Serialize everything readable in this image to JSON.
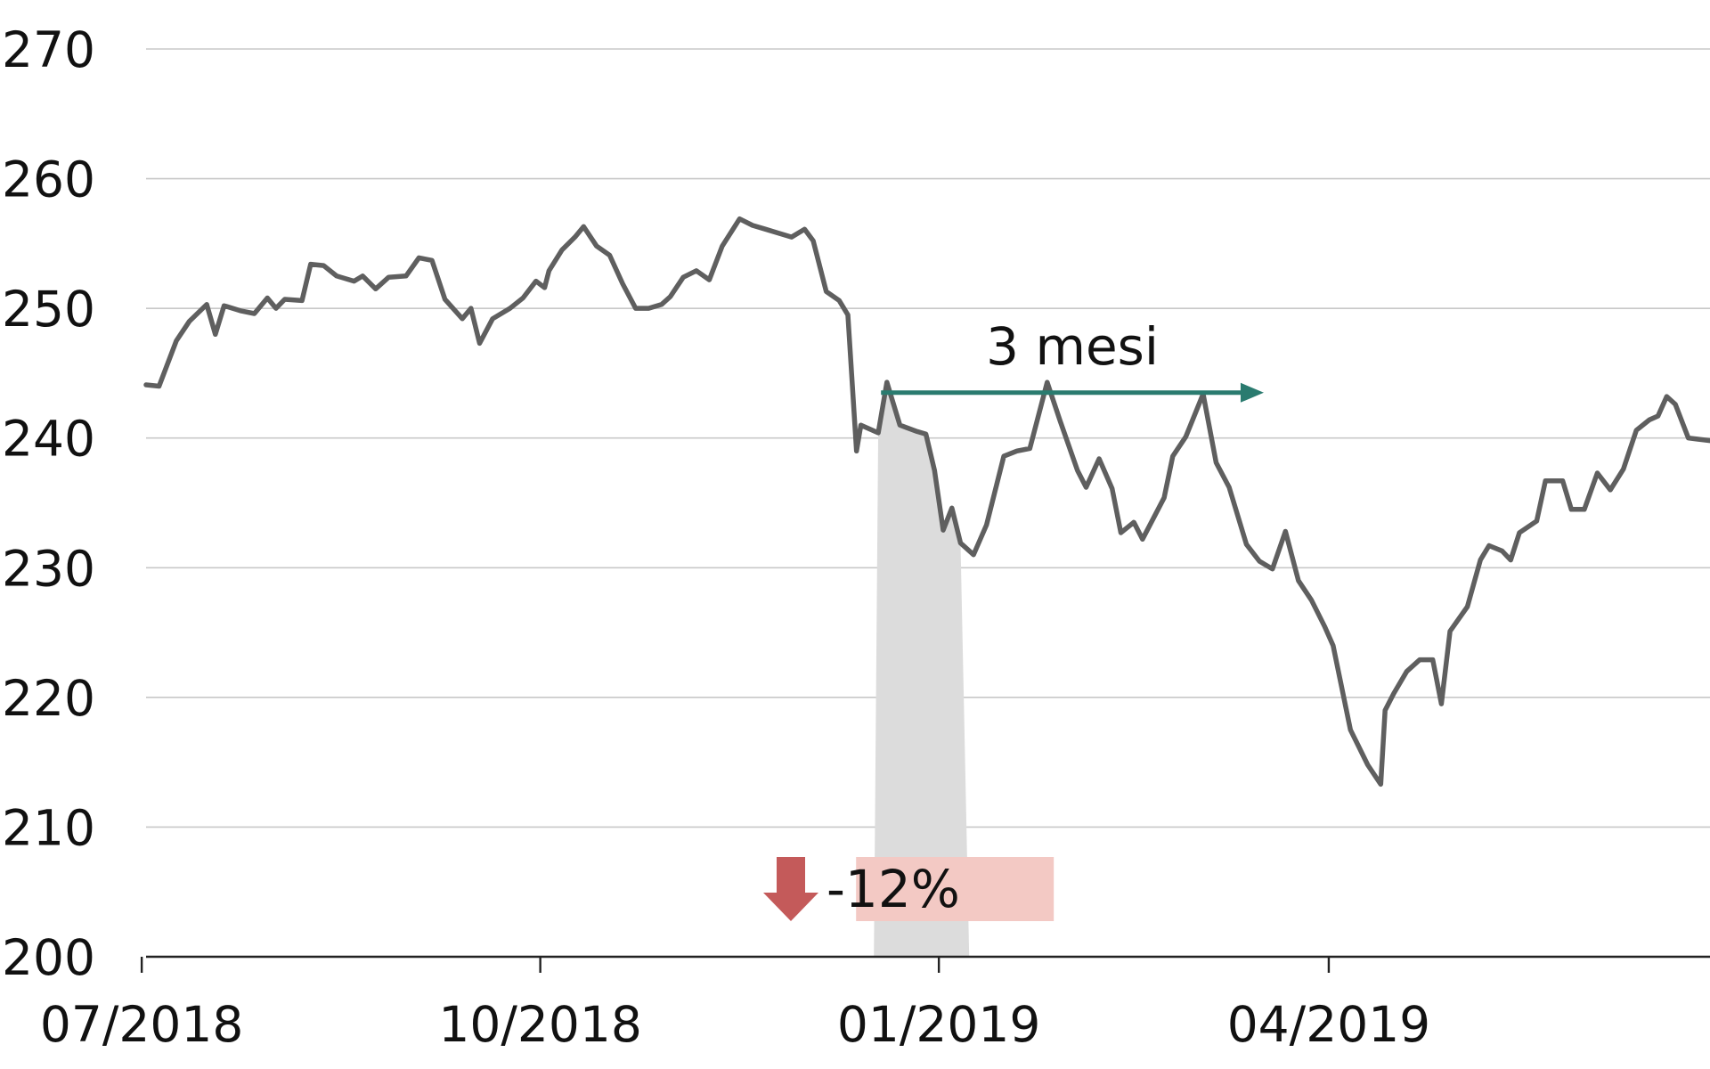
{
  "chart_data": {
    "type": "line",
    "title": "",
    "xlabel": "",
    "ylabel": "",
    "ylim": [
      200,
      270
    ],
    "yticks": [
      200,
      210,
      220,
      230,
      240,
      250,
      260,
      270
    ],
    "xlim": [
      "2018-07-02",
      "2019-06-28"
    ],
    "xticks": [
      {
        "date": "2018-07-01",
        "label": "07/2018"
      },
      {
        "date": "2018-10-01",
        "label": "10/2018"
      },
      {
        "date": "2019-01-01",
        "label": "01/2019"
      },
      {
        "date": "2019-04-01",
        "label": "04/2019"
      }
    ],
    "grid": "horizontal",
    "legend": "none",
    "colors": {
      "line": "#5f5f5f",
      "grid": "#c8c8c8",
      "axis": "#222222",
      "drawdown_shade": "#dcdcdc",
      "recovery_arrow": "#2a7b6f",
      "down_arrow": "#c45a5a",
      "down_box": "#f3c9c4"
    },
    "series": [
      {
        "points": [
          [
            "2018-07-02",
            244.1
          ],
          [
            "2018-07-05",
            244.0
          ],
          [
            "2018-07-09",
            247.5
          ],
          [
            "2018-07-12",
            249.0
          ],
          [
            "2018-07-16",
            250.3
          ],
          [
            "2018-07-18",
            248.0
          ],
          [
            "2018-07-20",
            250.2
          ],
          [
            "2018-07-24",
            249.8
          ],
          [
            "2018-07-27",
            249.6
          ],
          [
            "2018-07-30",
            250.8
          ],
          [
            "2018-08-01",
            250.0
          ],
          [
            "2018-08-03",
            250.7
          ],
          [
            "2018-08-07",
            250.6
          ],
          [
            "2018-08-09",
            253.4
          ],
          [
            "2018-08-12",
            253.3
          ],
          [
            "2018-08-15",
            252.5
          ],
          [
            "2018-08-19",
            252.1
          ],
          [
            "2018-08-21",
            252.5
          ],
          [
            "2018-08-24",
            251.5
          ],
          [
            "2018-08-27",
            252.4
          ],
          [
            "2018-08-31",
            252.5
          ],
          [
            "2018-09-03",
            253.9
          ],
          [
            "2018-09-06",
            253.7
          ],
          [
            "2018-09-09",
            250.7
          ],
          [
            "2018-09-13",
            249.2
          ],
          [
            "2018-09-15",
            250.0
          ],
          [
            "2018-09-17",
            247.3
          ],
          [
            "2018-09-20",
            249.2
          ],
          [
            "2018-09-24",
            250.0
          ],
          [
            "2018-09-27",
            250.8
          ],
          [
            "2018-09-30",
            252.1
          ],
          [
            "2018-10-02",
            251.6
          ],
          [
            "2018-10-03",
            252.9
          ],
          [
            "2018-10-06",
            254.5
          ],
          [
            "2018-10-09",
            255.5
          ],
          [
            "2018-10-11",
            256.3
          ],
          [
            "2018-10-14",
            254.8
          ],
          [
            "2018-10-17",
            254.1
          ],
          [
            "2018-10-20",
            251.9
          ],
          [
            "2018-10-23",
            250.0
          ],
          [
            "2018-10-26",
            250.0
          ],
          [
            "2018-10-29",
            250.3
          ],
          [
            "2018-10-31",
            250.9
          ],
          [
            "2018-11-03",
            252.4
          ],
          [
            "2018-11-06",
            252.9
          ],
          [
            "2018-11-09",
            252.2
          ],
          [
            "2018-11-12",
            254.8
          ],
          [
            "2018-11-16",
            256.9
          ],
          [
            "2018-11-19",
            256.4
          ],
          [
            "2018-11-22",
            256.1
          ],
          [
            "2018-11-25",
            255.8
          ],
          [
            "2018-11-28",
            255.5
          ],
          [
            "2018-12-01",
            256.1
          ],
          [
            "2018-12-03",
            255.2
          ],
          [
            "2018-12-06",
            251.3
          ],
          [
            "2018-12-09",
            250.6
          ],
          [
            "2018-12-11",
            249.5
          ],
          [
            "2018-12-13",
            239.0
          ],
          [
            "2018-12-14",
            241.0
          ],
          [
            "2018-12-18",
            240.4
          ],
          [
            "2018-12-20",
            244.3
          ],
          [
            "2018-12-23",
            241.0
          ],
          [
            "2018-12-27",
            240.5
          ],
          [
            "2018-12-29",
            240.3
          ],
          [
            "2018-12-31",
            237.5
          ],
          [
            "2019-01-02",
            232.9
          ],
          [
            "2019-01-04",
            234.6
          ],
          [
            "2019-01-06",
            231.9
          ],
          [
            "2019-01-09",
            231.0
          ],
          [
            "2019-01-12",
            233.3
          ],
          [
            "2019-01-16",
            238.6
          ],
          [
            "2019-01-19",
            239.0
          ],
          [
            "2019-01-22",
            239.2
          ],
          [
            "2019-01-26",
            244.3
          ],
          [
            "2019-01-29",
            241.3
          ],
          [
            "2019-02-02",
            237.5
          ],
          [
            "2019-02-04",
            236.2
          ],
          [
            "2019-02-07",
            238.4
          ],
          [
            "2019-02-10",
            236.1
          ],
          [
            "2019-02-12",
            232.7
          ],
          [
            "2019-02-15",
            233.5
          ],
          [
            "2019-02-17",
            232.2
          ],
          [
            "2019-02-22",
            235.4
          ],
          [
            "2019-02-24",
            238.6
          ],
          [
            "2019-02-27",
            240.1
          ],
          [
            "2019-03-03",
            243.4
          ],
          [
            "2019-03-06",
            238.1
          ],
          [
            "2019-03-09",
            236.2
          ],
          [
            "2019-03-13",
            231.8
          ],
          [
            "2019-03-16",
            230.5
          ],
          [
            "2019-03-19",
            229.9
          ],
          [
            "2019-03-22",
            232.8
          ],
          [
            "2019-03-25",
            229.0
          ],
          [
            "2019-03-28",
            227.5
          ],
          [
            "2019-03-31",
            225.5
          ],
          [
            "2019-04-02",
            224.0
          ],
          [
            "2019-04-06",
            217.5
          ],
          [
            "2019-04-10",
            214.8
          ],
          [
            "2019-04-13",
            213.3
          ],
          [
            "2019-04-14",
            219.0
          ],
          [
            "2019-04-16",
            220.3
          ],
          [
            "2019-04-19",
            222.0
          ],
          [
            "2019-04-22",
            222.9
          ],
          [
            "2019-04-25",
            222.9
          ],
          [
            "2019-04-27",
            219.5
          ],
          [
            "2019-04-29",
            225.1
          ],
          [
            "2019-05-03",
            227.0
          ],
          [
            "2019-05-06",
            230.6
          ],
          [
            "2019-05-08",
            231.7
          ],
          [
            "2019-05-11",
            231.3
          ],
          [
            "2019-05-13",
            230.6
          ],
          [
            "2019-05-15",
            232.7
          ],
          [
            "2019-05-19",
            233.6
          ],
          [
            "2019-05-21",
            236.7
          ],
          [
            "2019-05-25",
            236.7
          ],
          [
            "2019-05-27",
            234.5
          ],
          [
            "2019-05-30",
            234.5
          ],
          [
            "2019-06-02",
            237.3
          ],
          [
            "2019-06-05",
            236.0
          ],
          [
            "2019-06-08",
            237.6
          ],
          [
            "2019-06-11",
            240.6
          ],
          [
            "2019-06-14",
            241.4
          ],
          [
            "2019-06-16",
            241.7
          ],
          [
            "2019-06-18",
            243.2
          ],
          [
            "2019-06-20",
            242.6
          ],
          [
            "2019-06-23",
            240.0
          ],
          [
            "2019-06-28",
            239.8
          ]
        ]
      }
    ],
    "annotations": [
      {
        "type": "drawdown",
        "label": "-12%",
        "from": "2018-12-17",
        "to": "2019-01-08"
      },
      {
        "type": "recovery",
        "label": "3 mesi",
        "from": "2018-12-17",
        "to": "2019-03-17",
        "y": 243.5
      }
    ]
  }
}
